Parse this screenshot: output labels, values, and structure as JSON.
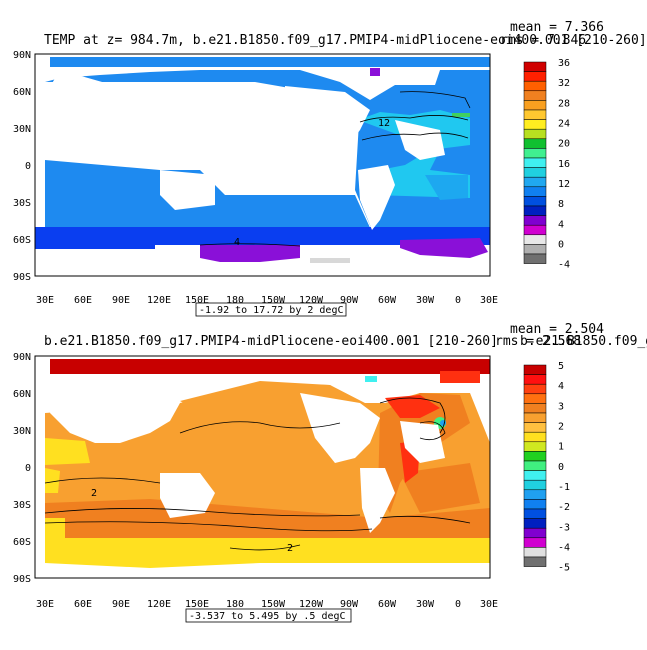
{
  "panels": [
    {
      "title": "TEMP at z= 984.7m, b.e21.B1850.f09_g17.PMIP4-midPliocene-eoi400.001 [210-260]",
      "stat_mean": "mean = 7.366",
      "stat_rms": "rms = 7.846",
      "contour_info": "-1.92 to 17.72 by 2 degC",
      "lat_labels": [
        "90N",
        "60N",
        "30N",
        "0",
        "30S",
        "60S",
        "90S"
      ],
      "lon_labels": [
        "30E",
        "60E",
        "90E",
        "120E",
        "150E",
        "180",
        "150W",
        "120W",
        "90W",
        "60W",
        "30W",
        "0",
        "30E"
      ],
      "colorbar": {
        "labels": [
          "36",
          "32",
          "28",
          "24",
          "20",
          "16",
          "12",
          "8",
          "4",
          "0",
          "-4"
        ],
        "colors": [
          "#d00000",
          "#ff2000",
          "#ff6000",
          "#f08020",
          "#f9a020",
          "#ffc830",
          "#ffee20",
          "#b8e020",
          "#10c030",
          "#40f090",
          "#40f0f0",
          "#20d0e0",
          "#20a8f0",
          "#1080f0",
          "#0050e0",
          "#0020c0",
          "#8000d0",
          "#d000d0",
          "#e8e8e8",
          "#b0b0b0",
          "#707070"
        ]
      },
      "contour_labels": [
        "12",
        "4"
      ]
    },
    {
      "title": "b.e21.B1850.f09_g17.PMIP4-midPliocene-eoi400.001 [210-260]",
      "stat_mean": "mean = 2.504",
      "stat_rms": "rms = 2.568",
      "overlap_text": "b.e21.B1850.f09_g",
      "contour_info": "-3.537 to 5.495 by .5 degC",
      "lat_labels": [
        "90N",
        "60N",
        "30N",
        "0",
        "30S",
        "60S",
        "90S"
      ],
      "lon_labels": [
        "30E",
        "60E",
        "90E",
        "120E",
        "150E",
        "180",
        "150W",
        "120W",
        "90W",
        "60W",
        "30W",
        "0",
        "30E"
      ],
      "colorbar": {
        "labels": [
          "5",
          "4",
          "3",
          "2",
          "1",
          "0",
          "-1",
          "-2",
          "-3",
          "-4",
          "-5"
        ],
        "colors": [
          "#c80000",
          "#ff1010",
          "#ff4010",
          "#ff7010",
          "#f08020",
          "#f8a030",
          "#ffc040",
          "#ffe020",
          "#d0e820",
          "#20d020",
          "#40f080",
          "#40f0f0",
          "#20d0e0",
          "#20a0f0",
          "#1080f0",
          "#0050e0",
          "#0020c0",
          "#8000d0",
          "#d000d0",
          "#e0e0e0",
          "#707070"
        ]
      },
      "contour_labels": [
        "2",
        "2"
      ]
    }
  ]
}
